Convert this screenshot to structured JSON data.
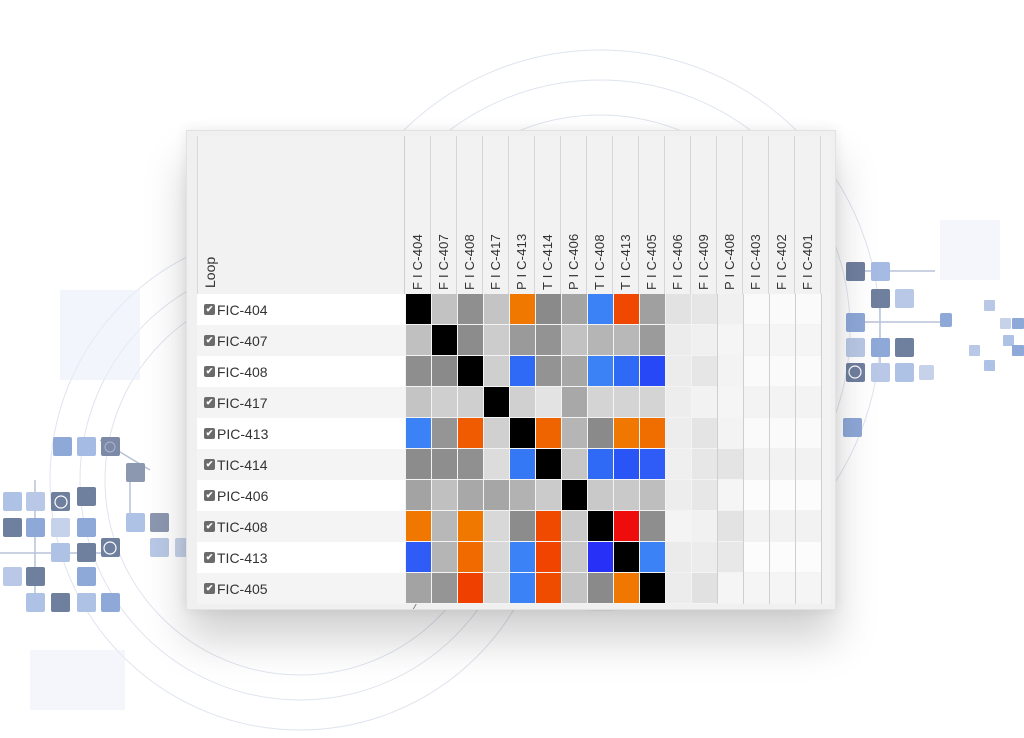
{
  "table": {
    "loop_header": "Loop",
    "columns": [
      "F I C-404",
      "F I C-407",
      "F I C-408",
      "F I C-417",
      "P I C-413",
      "T I C-414",
      "P I C-406",
      "T I C-408",
      "T I C-413",
      "F I C-405",
      "F I C-406",
      "F I C-409",
      "P I C-408",
      "F I C-403",
      "F I C-402",
      "F I C-401"
    ],
    "rows": [
      {
        "label": "FIC-404",
        "checked": true,
        "cells": [
          "#000000",
          "#c2c2c2",
          "#8f8f8f",
          "#c4c4c4",
          "#f07800",
          "#8a8a8a",
          "#a4a4a4",
          "#3b82f6",
          "#f04800",
          "#a0a0a0",
          "#e2e2e2",
          "#e6e6e6",
          "#f0f0f0",
          "#fafafa",
          "#fafafa",
          "#fafafa"
        ]
      },
      {
        "label": "FIC-407",
        "checked": true,
        "cells": [
          "#c0c0c0",
          "#000000",
          "#8c8c8c",
          "#cccccc",
          "#9a9a9a",
          "#939393",
          "#c2c2c2",
          "#b5b5b5",
          "#b8b8b8",
          "#9b9b9b",
          "#ececec",
          "#f0f0f0",
          "#f5f5f5",
          "#f5f5f5",
          "#f5f5f5",
          "#f5f5f5"
        ]
      },
      {
        "label": "FIC-408",
        "checked": true,
        "cells": [
          "#8e8e8e",
          "#8a8a8a",
          "#000000",
          "#cfcfcf",
          "#2f6af7",
          "#939393",
          "#a7a7a7",
          "#3b82f6",
          "#2f6af7",
          "#2748f7",
          "#ececec",
          "#e6e6e6",
          "#f3f3f3",
          "#fafafa",
          "#fafafa",
          "#fafafa"
        ]
      },
      {
        "label": "FIC-417",
        "checked": true,
        "cells": [
          "#c4c4c4",
          "#cfcfcf",
          "#cfcfcf",
          "#000000",
          "#d0d0d0",
          "#e3e3e3",
          "#a8a8a8",
          "#d4d4d4",
          "#d4d4d4",
          "#d4d4d4",
          "#ededed",
          "#f2f2f2",
          "#f5f5f5",
          "#f3f3f3",
          "#f3f3f3",
          "#f3f3f3"
        ]
      },
      {
        "label": "PIC-413",
        "checked": true,
        "cells": [
          "#3b82f6",
          "#959595",
          "#f05a00",
          "#d0d0d0",
          "#000000",
          "#f06400",
          "#b5b5b5",
          "#8a8a8a",
          "#f07800",
          "#f06e00",
          "#ededed",
          "#e4e4e4",
          "#f3f3f3",
          "#fafafa",
          "#fafafa",
          "#fafafa"
        ]
      },
      {
        "label": "TIC-414",
        "checked": true,
        "cells": [
          "#8c8c8c",
          "#8e8e8e",
          "#909090",
          "#dcdcdc",
          "#3478f6",
          "#000000",
          "#c6c6c6",
          "#2f6af7",
          "#2a55f6",
          "#2f5cf6",
          "#efefef",
          "#e7e7e7",
          "#e4e4e4",
          "#f2f2f2",
          "#f2f2f2",
          "#f2f2f2"
        ]
      },
      {
        "label": "PIC-406",
        "checked": true,
        "cells": [
          "#a3a3a3",
          "#c0c0c0",
          "#a8a8a8",
          "#a6a6a6",
          "#b2b2b2",
          "#cbcbcb",
          "#000000",
          "#c9c9c9",
          "#c9c9c9",
          "#bebebe",
          "#ededed",
          "#e7e7e7",
          "#f5f5f5",
          "#fcfcfc",
          "#fcfcfc",
          "#fcfcfc"
        ]
      },
      {
        "label": "TIC-408",
        "checked": true,
        "cells": [
          "#f07800",
          "#b8b8b8",
          "#f07800",
          "#d8d8d8",
          "#8c8c8c",
          "#f04a00",
          "#c9c9c9",
          "#000000",
          "#ef0c0c",
          "#8e8e8e",
          "#f4f4f4",
          "#f1f1f1",
          "#e3e3e3",
          "#f2f2f2",
          "#f2f2f2",
          "#f2f2f2"
        ]
      },
      {
        "label": "TIC-413",
        "checked": true,
        "cells": [
          "#2f5cf6",
          "#b5b5b5",
          "#f06a00",
          "#d8d8d8",
          "#3b82f6",
          "#f04400",
          "#c9c9c9",
          "#2630f7",
          "#000000",
          "#3b82f6",
          "#ebebeb",
          "#ececec",
          "#e8e8e8",
          "#fcfcfc",
          "#fcfcfc",
          "#fcfcfc"
        ]
      },
      {
        "label": "FIC-405",
        "checked": true,
        "cells": [
          "#a3a3a3",
          "#959595",
          "#f04000",
          "#d8d8d8",
          "#3b82f6",
          "#f04c00",
          "#c4c4c4",
          "#8a8a8a",
          "#f07800",
          "#000000",
          "#ececec",
          "#e1e1e1",
          "#f5f5f5",
          "#f5f5f5",
          "#f5f5f5",
          "#f5f5f5"
        ]
      }
    ]
  },
  "icons": {
    "checkbox": "✔"
  },
  "colors": {
    "diagonal": "#000000",
    "orange": "#f07800",
    "red_orange": "#f04800",
    "red": "#ef0c0c",
    "blue": "#3b82f6",
    "deep_blue": "#2748f7",
    "deco_blue": "#8ea8d8",
    "deco_slate": "#6f7f9e"
  }
}
